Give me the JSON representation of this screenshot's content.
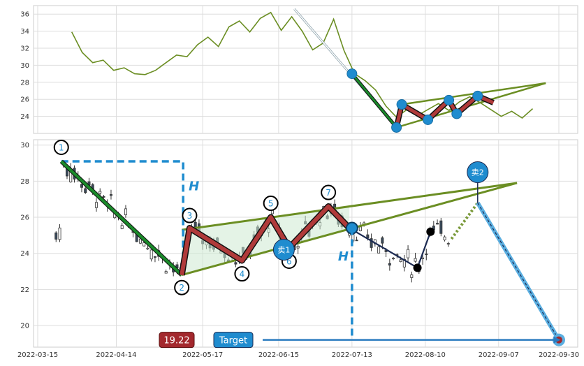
{
  "colors": {
    "price_line": "#6b8e23",
    "pattern_red": "#b03a3a",
    "pattern_green": "#1a8a2a",
    "trend_olive": "#6b8e23",
    "fill_green": "#cde9d2",
    "marker_blue": "#1f8ccf",
    "dash_blue": "#1f8ccf",
    "bearish_candle": "#3a4a5c",
    "grid": "#dddddd",
    "badge_red": "#a3282d",
    "target_path_blue": "#5aaee0"
  },
  "chart_data": [
    {
      "type": "line",
      "panel": "top",
      "ylim": [
        22,
        37
      ],
      "yticks": [
        "24",
        "26",
        "28",
        "30",
        "32",
        "34",
        "36"
      ],
      "grid": true,
      "series": [
        {
          "x": [
            "2022-03-28",
            "2022-04-01",
            "2022-04-05",
            "2022-04-09",
            "2022-04-13",
            "2022-04-17",
            "2022-04-21",
            "2022-04-25",
            "2022-04-29",
            "2022-05-03",
            "2022-05-07",
            "2022-05-11",
            "2022-05-15",
            "2022-05-19",
            "2022-05-23",
            "2022-05-27",
            "2022-05-31",
            "2022-06-04",
            "2022-06-08",
            "2022-06-12",
            "2022-06-16",
            "2022-06-20",
            "2022-06-24",
            "2022-06-28",
            "2022-07-02",
            "2022-07-06",
            "2022-07-10",
            "2022-07-14",
            "2022-07-18",
            "2022-07-22",
            "2022-07-26",
            "2022-07-30",
            "2022-08-03",
            "2022-08-07",
            "2022-08-11",
            "2022-08-15",
            "2022-08-19",
            "2022-08-23",
            "2022-08-27",
            "2022-08-31",
            "2022-09-04",
            "2022-09-08",
            "2022-09-12",
            "2022-09-16",
            "2022-09-20"
          ],
          "values": [
            33.9,
            31.5,
            30.3,
            30.6,
            29.4,
            29.7,
            29.0,
            28.9,
            29.4,
            30.3,
            31.2,
            31.0,
            32.4,
            33.3,
            32.2,
            34.5,
            35.2,
            33.9,
            35.5,
            36.2,
            34.1,
            35.7,
            34.0,
            31.8,
            32.6,
            35.4,
            31.7,
            29.0,
            28.2,
            27.1,
            25.2,
            23.9,
            24.8,
            24.1,
            24.8,
            25.5,
            24.7,
            25.7,
            26.3,
            25.6,
            24.8,
            24.0,
            24.6,
            23.8,
            24.9
          ]
        }
      ],
      "pattern_points": [
        {
          "x": "2022-07-13",
          "y": 29.0
        },
        {
          "x": "2022-07-30",
          "y": 22.7
        },
        {
          "x": "2022-08-01",
          "y": 25.4
        },
        {
          "x": "2022-08-11",
          "y": 23.6
        },
        {
          "x": "2022-08-19",
          "y": 25.9
        },
        {
          "x": "2022-08-22",
          "y": 24.3
        },
        {
          "x": "2022-08-30",
          "y": 26.4
        }
      ],
      "trendlines": [
        {
          "from": {
            "x": "2022-07-30",
            "y": 22.7
          },
          "to": {
            "x": "2022-09-25",
            "y": 27.9
          }
        },
        {
          "from": {
            "x": "2022-08-01",
            "y": 25.4
          },
          "to": {
            "x": "2022-09-25",
            "y": 27.9
          }
        }
      ]
    },
    {
      "type": "line",
      "panel": "bottom",
      "ylim": [
        18.8,
        30.3
      ],
      "yticks": [
        "20",
        "22",
        "24",
        "26",
        "28",
        "30"
      ],
      "xticks": [
        "2022-03-15",
        "2022-04-14",
        "2022-05-17",
        "2022-06-15",
        "2022-07-13",
        "2022-08-10",
        "2022-09-07",
        "2022-09-30"
      ],
      "grid": true,
      "pattern_points": [
        {
          "label": "1",
          "x": "2022-03-24",
          "y": 29.1
        },
        {
          "label": "2",
          "x": "2022-05-09",
          "y": 22.8
        },
        {
          "label": "3",
          "x": "2022-05-12",
          "y": 25.4
        },
        {
          "label": "4",
          "x": "2022-06-01",
          "y": 23.6
        },
        {
          "label": "5",
          "x": "2022-06-12",
          "y": 26.0
        },
        {
          "label": "6",
          "x": "2022-06-19",
          "y": 24.3
        },
        {
          "label": "7",
          "x": "2022-07-04",
          "y": 26.6
        }
      ],
      "trendlines": [
        {
          "from": {
            "x": "2022-05-09",
            "y": 22.8
          },
          "to": {
            "x": "2022-09-14",
            "y": 27.9
          }
        },
        {
          "from": {
            "x": "2022-05-09",
            "y": 25.3
          },
          "to": {
            "x": "2022-09-14",
            "y": 27.9
          }
        }
      ],
      "h_measure": {
        "label": "H",
        "top": 29.1,
        "bottom": 22.8,
        "x": "2022-05-09"
      },
      "h_measure_2": {
        "label": "H",
        "top": 25.4,
        "bottom": 19.2,
        "x": "2022-07-13"
      },
      "breakout_path": [
        {
          "x": "2022-07-12",
          "y": 25.4
        },
        {
          "x": "2022-08-07",
          "y": 23.2
        },
        {
          "x": "2022-08-12",
          "y": 25.2
        }
      ],
      "markers": [
        {
          "label": "卖1",
          "x": "2022-06-17",
          "y": 24.2
        },
        {
          "label": "卖2",
          "x": "2022-08-30",
          "y": 28.5
        }
      ],
      "target_path": [
        {
          "x": "2022-08-30",
          "y": 26.8
        },
        {
          "x": "2022-09-30",
          "y": 19.2
        }
      ],
      "target_value": "19.22",
      "target_label": "Target"
    }
  ]
}
